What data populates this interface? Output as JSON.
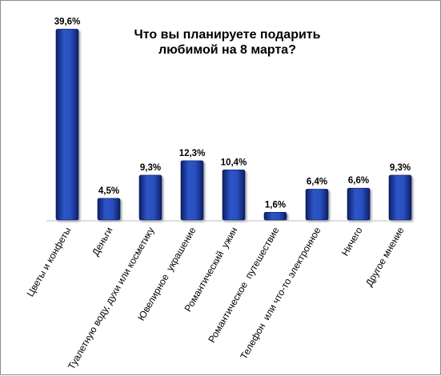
{
  "chart_data": {
    "type": "bar",
    "title": "Что вы планируете подарить любимой на 8 марта?",
    "title_lines": [
      "Что вы планируете подарить",
      "любимой на 8 марта?"
    ],
    "categories": [
      "Цветы и конфеты",
      "Деньги",
      "Туалетную воду, духи или косметику",
      "Ювелирное  украшение",
      "Романтический  ужин",
      "Романтическое  путешествие",
      "Телефон  или что-то электронное",
      "Ничего",
      "Другое мнение"
    ],
    "values": [
      39.6,
      4.5,
      9.3,
      12.3,
      10.4,
      1.6,
      6.4,
      6.6,
      9.3
    ],
    "value_labels": [
      "39,6%",
      "4,5%",
      "9,3%",
      "12,3%",
      "10,4%",
      "1,6%",
      "6,4%",
      "6,6%",
      "9,3%"
    ],
    "unit": "%",
    "ylim": [
      0,
      40
    ],
    "grid": false,
    "legend": "none",
    "bar_color": "#1f3f9e"
  }
}
